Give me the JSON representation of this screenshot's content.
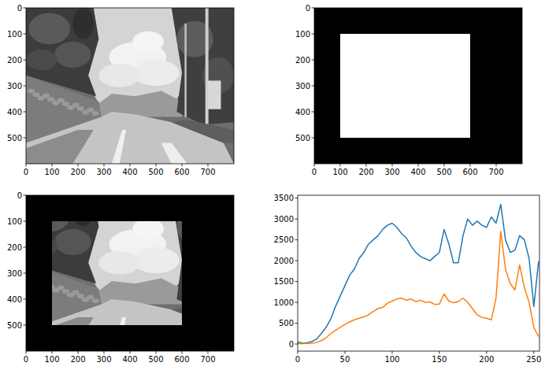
{
  "chart_data": [
    {
      "type": "image",
      "xlim": [
        0,
        800
      ],
      "ylim": [
        600,
        0
      ],
      "xticks": [
        0,
        100,
        200,
        300,
        400,
        500,
        600,
        700
      ],
      "yticks": [
        0,
        100,
        200,
        300,
        400,
        500
      ]
    },
    {
      "type": "mask",
      "rect": {
        "x": [
          100,
          600
        ],
        "y": [
          100,
          500
        ]
      },
      "xlim": [
        0,
        800
      ],
      "ylim": [
        600,
        0
      ],
      "xticks": [
        0,
        100,
        200,
        300,
        400,
        500,
        600,
        700
      ],
      "yticks": [
        0,
        100,
        200,
        300,
        400,
        500
      ]
    },
    {
      "type": "masked_image",
      "rect": {
        "x": [
          100,
          600
        ],
        "y": [
          100,
          500
        ]
      },
      "xlim": [
        0,
        800
      ],
      "ylim": [
        600,
        0
      ],
      "xticks": [
        0,
        100,
        200,
        300,
        400,
        500,
        600,
        700
      ],
      "yticks": [
        0,
        100,
        200,
        300,
        400,
        500
      ]
    },
    {
      "type": "line",
      "xlim": [
        0,
        256
      ],
      "ylim": [
        -170,
        3570
      ],
      "xticks": [
        0,
        50,
        100,
        150,
        200,
        250
      ],
      "yticks": [
        0,
        500,
        1000,
        1500,
        2000,
        2500,
        3000,
        3500
      ],
      "x": [
        0,
        5,
        10,
        15,
        20,
        25,
        30,
        35,
        40,
        45,
        50,
        55,
        60,
        65,
        70,
        75,
        80,
        85,
        90,
        95,
        100,
        105,
        110,
        115,
        120,
        125,
        130,
        135,
        140,
        145,
        150,
        155,
        160,
        165,
        170,
        175,
        180,
        185,
        190,
        195,
        200,
        205,
        210,
        215,
        220,
        225,
        230,
        235,
        240,
        245,
        250,
        255
      ],
      "series": [
        {
          "color": "#1f77b4",
          "values": [
            50,
            20,
            30,
            60,
            120,
            250,
            400,
            600,
            900,
            1150,
            1400,
            1650,
            1800,
            2050,
            2200,
            2400,
            2500,
            2600,
            2750,
            2850,
            2900,
            2800,
            2650,
            2550,
            2350,
            2200,
            2100,
            2050,
            2000,
            2100,
            2200,
            2750,
            2400,
            1950,
            1950,
            2600,
            3000,
            2850,
            2950,
            2850,
            2800,
            3050,
            2900,
            3350,
            2500,
            2200,
            2250,
            2600,
            2500,
            2050,
            900,
            1980
          ]
        },
        {
          "color": "#ff7f0e",
          "values": [
            10,
            10,
            15,
            20,
            40,
            80,
            150,
            250,
            330,
            400,
            470,
            530,
            580,
            620,
            650,
            700,
            780,
            850,
            880,
            980,
            1030,
            1080,
            1100,
            1050,
            1080,
            1020,
            1050,
            1000,
            1010,
            950,
            960,
            1200,
            1030,
            990,
            1020,
            1100,
            1000,
            850,
            700,
            640,
            620,
            580,
            1100,
            2700,
            1800,
            1450,
            1300,
            1900,
            1350,
            1000,
            400,
            180
          ]
        }
      ]
    }
  ]
}
